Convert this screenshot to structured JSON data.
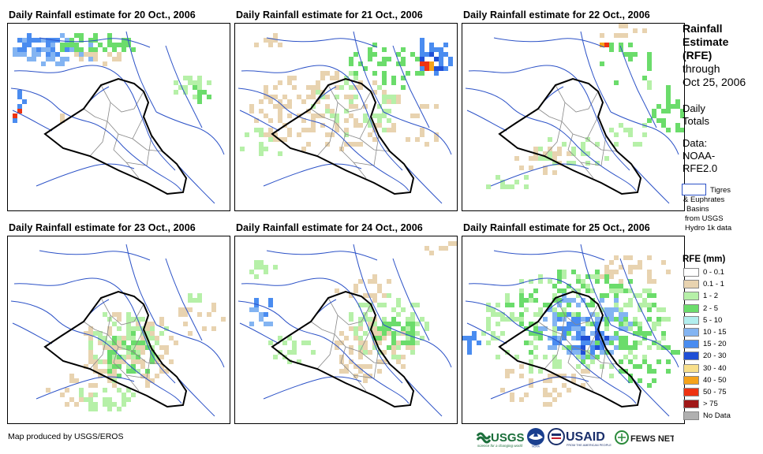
{
  "panels": [
    {
      "title": "Daily Rainfall estimate for 20 Oct., 2006"
    },
    {
      "title": "Daily Rainfall estimate for 21 Oct., 2006"
    },
    {
      "title": "Daily Rainfall estimate for 22 Oct., 2006"
    },
    {
      "title": "Daily Rainfall estimate for 23 Oct., 2006"
    },
    {
      "title": "Daily Rainfall estimate for 24 Oct., 2006"
    },
    {
      "title": "Daily Rainfall estimate for 25 Oct., 2006"
    }
  ],
  "legend": {
    "heading": [
      "Rainfall",
      "Estimate",
      "(RFE)"
    ],
    "through": "through",
    "date": "Oct 25, 2006",
    "daily": "Daily",
    "totals": "Totals",
    "data_label": "Data:",
    "data_source_1": "NOAA-",
    "data_source_2": "RFE2.0",
    "basin_lines": [
      "Tigres",
      "& Euphrates",
      "Basins",
      "from USGS",
      "Hydro 1k data"
    ],
    "rfe_title": "RFE (mm)",
    "classes": [
      {
        "label": "0 - 0.1",
        "color": "#ffffff"
      },
      {
        "label": "0.1 - 1",
        "color": "#e8d3b0"
      },
      {
        "label": "1 - 2",
        "color": "#b6f0a8"
      },
      {
        "label": "2 - 5",
        "color": "#6bdc6b"
      },
      {
        "label": "5 - 10",
        "color": "#b2eeee"
      },
      {
        "label": "10 - 15",
        "color": "#83b4f2"
      },
      {
        "label": "15 - 20",
        "color": "#4a8cf0"
      },
      {
        "label": "20 - 30",
        "color": "#1f4fd6"
      },
      {
        "label": "30 - 40",
        "color": "#f8df8a"
      },
      {
        "label": "40 - 50",
        "color": "#f5a21a"
      },
      {
        "label": "50 - 75",
        "color": "#ee3311"
      },
      {
        "label": "> 75",
        "color": "#a01818"
      },
      {
        "label": "No Data",
        "color": "#b0b0b0"
      }
    ]
  },
  "footer": {
    "credit": "Map produced by USGS/EROS",
    "usgs": "USGS",
    "usgs_tagline": "science for a changing world",
    "noaa": "NOAA",
    "usaid": "USAID",
    "usaid_tagline": "FROM THE AMERICAN PEOPLE",
    "fews": "FEWS NET"
  },
  "colors": {
    "river": "#2c52c7",
    "border": "#000000",
    "province": "#888888"
  }
}
